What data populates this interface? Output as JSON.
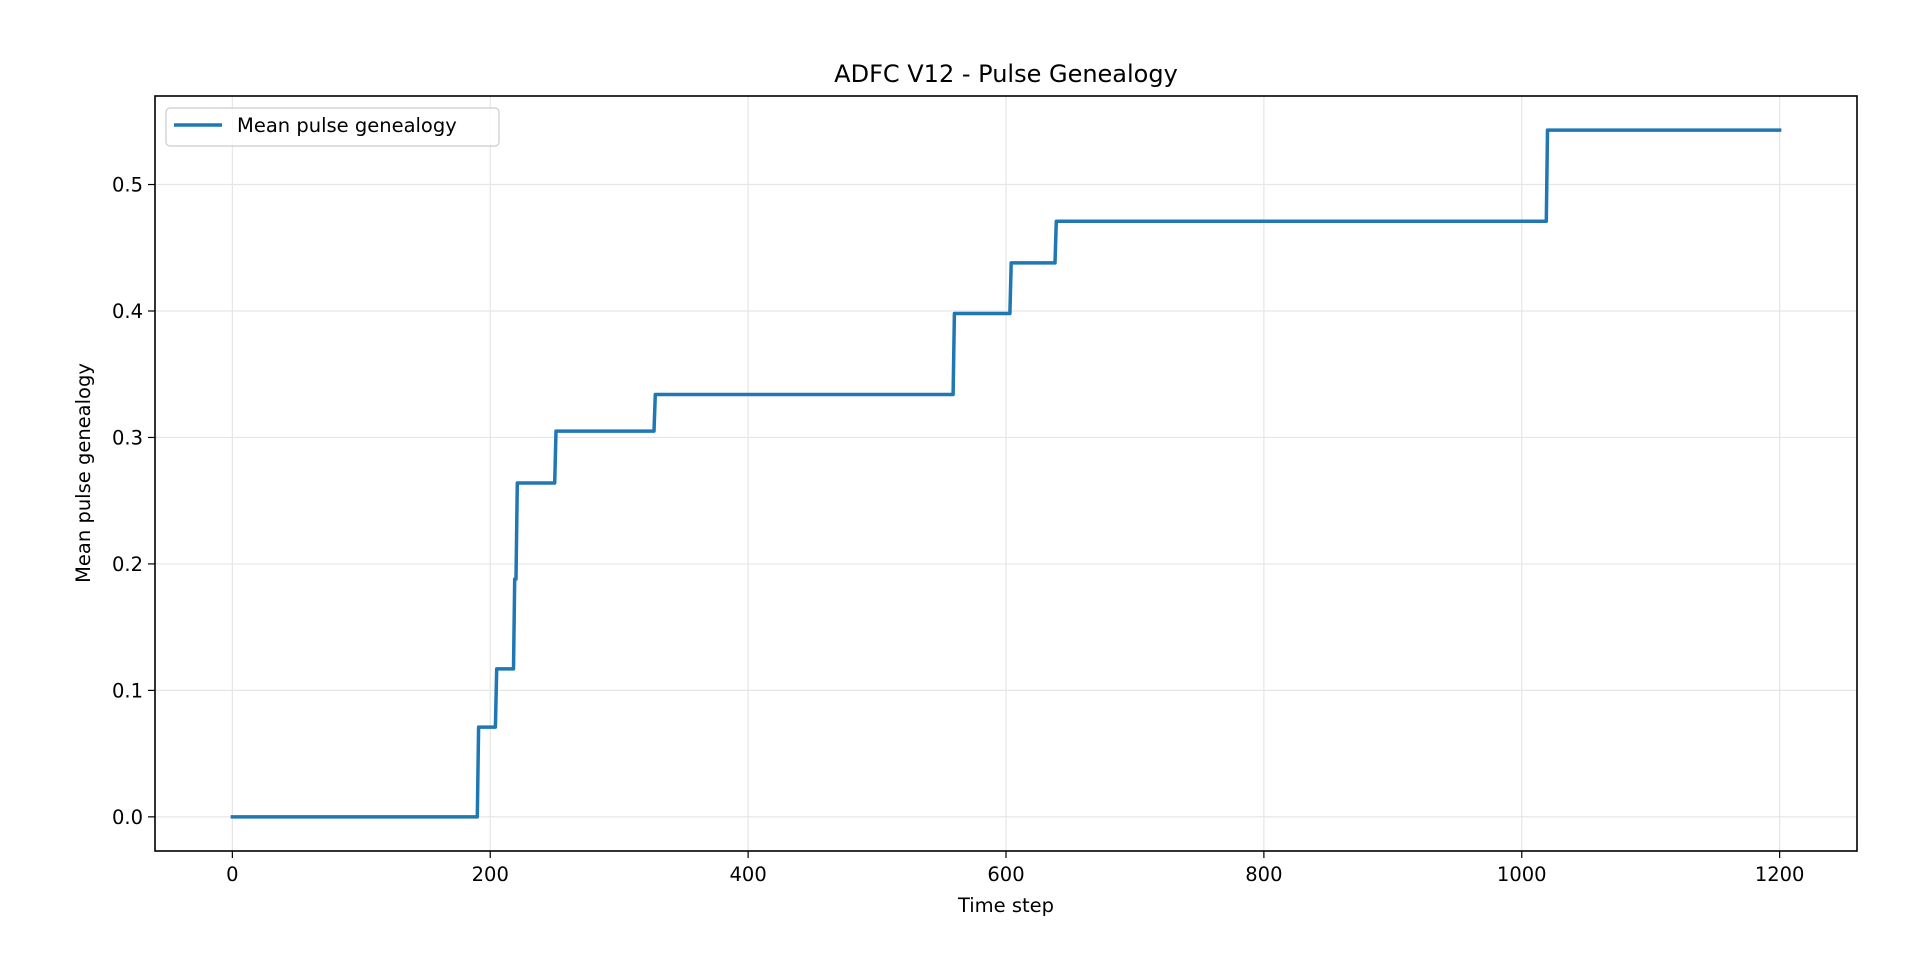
{
  "chart_data": {
    "type": "line",
    "title": "ADFC V12 - Pulse Genealogy",
    "xlabel": "Time step",
    "ylabel": "Mean pulse genealogy",
    "xlim": [
      -60,
      1260
    ],
    "ylim": [
      -0.027,
      0.57
    ],
    "xticks": [
      {
        "value": 0,
        "label": "0"
      },
      {
        "value": 200,
        "label": "200"
      },
      {
        "value": 400,
        "label": "400"
      },
      {
        "value": 600,
        "label": "600"
      },
      {
        "value": 800,
        "label": "800"
      },
      {
        "value": 1000,
        "label": "1000"
      },
      {
        "value": 1200,
        "label": "1200"
      }
    ],
    "yticks": [
      {
        "value": 0.0,
        "label": "0.0"
      },
      {
        "value": 0.1,
        "label": "0.1"
      },
      {
        "value": 0.2,
        "label": "0.2"
      },
      {
        "value": 0.3,
        "label": "0.3"
      },
      {
        "value": 0.4,
        "label": "0.4"
      },
      {
        "value": 0.5,
        "label": "0.5"
      }
    ],
    "grid": true,
    "legend_position": "upper-left",
    "series": [
      {
        "name": "Mean pulse genealogy",
        "color": "#1f77b4",
        "points": [
          [
            0,
            0.0
          ],
          [
            190,
            0.0
          ],
          [
            191,
            0.071
          ],
          [
            204,
            0.071
          ],
          [
            205,
            0.117
          ],
          [
            218,
            0.117
          ],
          [
            219,
            0.188
          ],
          [
            220,
            0.188
          ],
          [
            221,
            0.264
          ],
          [
            250,
            0.264
          ],
          [
            251,
            0.305
          ],
          [
            327,
            0.305
          ],
          [
            328,
            0.334
          ],
          [
            559,
            0.334
          ],
          [
            560,
            0.398
          ],
          [
            603,
            0.398
          ],
          [
            604,
            0.438
          ],
          [
            638,
            0.438
          ],
          [
            639,
            0.471
          ],
          [
            1019,
            0.471
          ],
          [
            1020,
            0.543
          ],
          [
            1200,
            0.543
          ]
        ]
      }
    ]
  },
  "colors": {
    "grid": "#e6e6e6",
    "axes": "#000000",
    "legend_border": "#cccccc"
  }
}
